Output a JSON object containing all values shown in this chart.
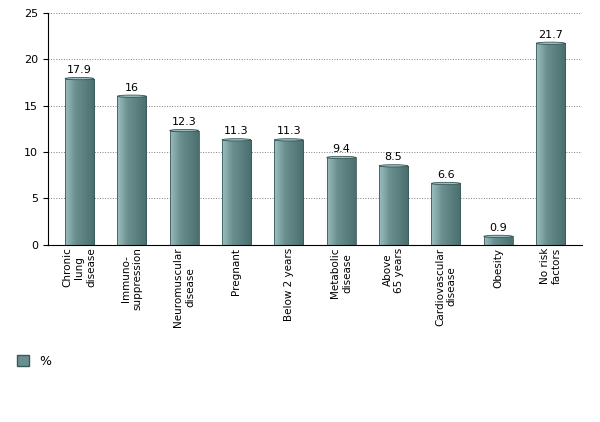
{
  "categories": [
    "Chronic\nlung\ndisease",
    "Immuno-\nsuppression",
    "Neuromuscular\ndisease",
    "Pregnant",
    "Below 2 years",
    "Metabolic\ndisease",
    "Above\n65 years",
    "Cardiovascular\ndisease",
    "Obesity",
    "No risk\nfactors"
  ],
  "values": [
    17.9,
    16.0,
    12.3,
    11.3,
    11.3,
    9.4,
    8.5,
    6.6,
    0.9,
    21.7
  ],
  "bar_color_main": "#6b8f8f",
  "bar_color_light": "#9bbcbc",
  "bar_color_dark": "#4a6e6e",
  "bar_edge_color": "#3a5a5a",
  "ylim": [
    0,
    25
  ],
  "yticks": [
    0,
    5,
    10,
    15,
    20,
    25
  ],
  "background_color": "#ffffff",
  "legend_label": "%",
  "value_labels": [
    "17.9",
    "16",
    "12.3",
    "11.3",
    "11.3",
    "9.4",
    "8.5",
    "6.6",
    "0.9",
    "21.7"
  ]
}
